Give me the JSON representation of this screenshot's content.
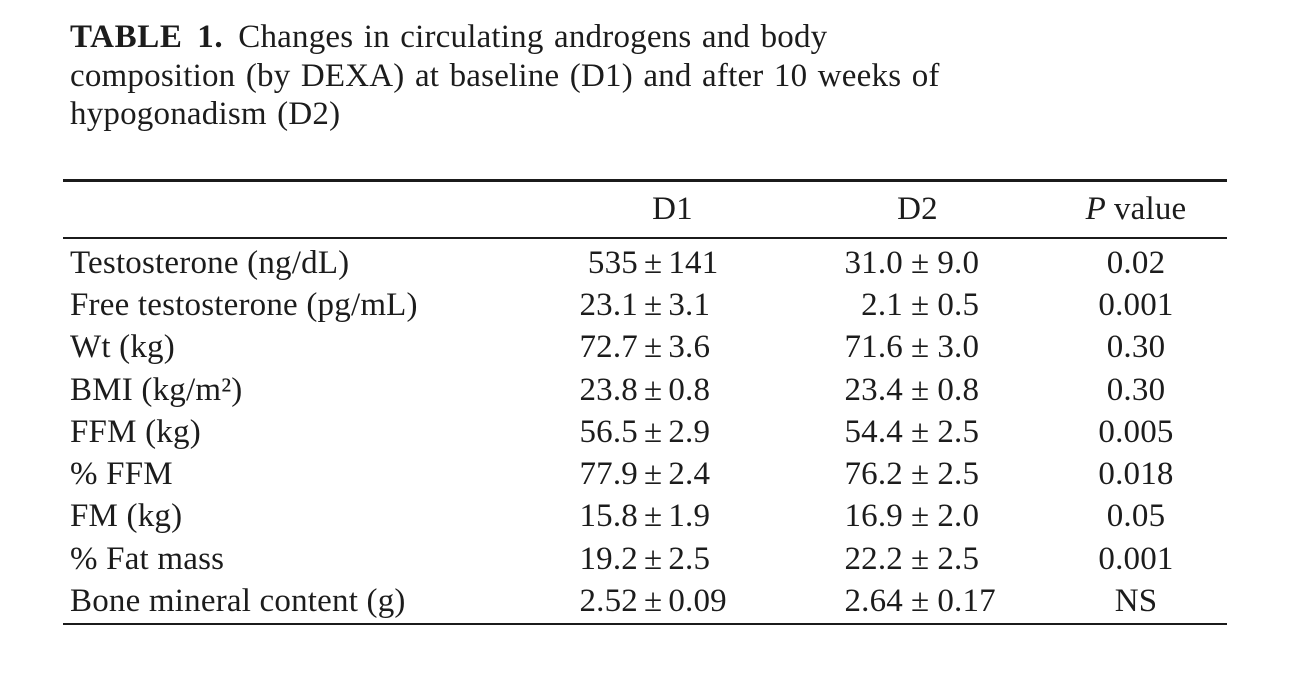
{
  "caption": {
    "label": "TABLE 1.",
    "line1": "Changes in circulating androgens and body",
    "line2": "composition (by DEXA) at baseline (D1) and after 10 weeks of",
    "line3": "hypogonadism (D2)"
  },
  "table": {
    "pm_symbol": "±",
    "columns": {
      "label": "",
      "d1": "D1",
      "d2": "D2",
      "p_symbol": "P",
      "p_text": "value"
    },
    "rows": [
      {
        "label": "Testosterone (ng/dL)",
        "d1_mean": "535",
        "d1_sd": "141",
        "d2_mean": "31.0",
        "d2_sd": "9.0",
        "p": "0.02"
      },
      {
        "label": "Free testosterone (pg/mL)",
        "d1_mean": "23.1",
        "d1_sd": "3.1",
        "d2_mean": "2.1",
        "d2_sd": "0.5",
        "p": "0.001"
      },
      {
        "label": "Wt (kg)",
        "d1_mean": "72.7",
        "d1_sd": "3.6",
        "d2_mean": "71.6",
        "d2_sd": "3.0",
        "p": "0.30"
      },
      {
        "label": "BMI (kg/m²)",
        "d1_mean": "23.8",
        "d1_sd": "0.8",
        "d2_mean": "23.4",
        "d2_sd": "0.8",
        "p": "0.30"
      },
      {
        "label": "FFM (kg)",
        "d1_mean": "56.5",
        "d1_sd": "2.9",
        "d2_mean": "54.4",
        "d2_sd": "2.5",
        "p": "0.005"
      },
      {
        "label": "% FFM",
        "d1_mean": "77.9",
        "d1_sd": "2.4",
        "d2_mean": "76.2",
        "d2_sd": "2.5",
        "p": "0.018"
      },
      {
        "label": "FM (kg)",
        "d1_mean": "15.8",
        "d1_sd": "1.9",
        "d2_mean": "16.9",
        "d2_sd": "2.0",
        "p": "0.05"
      },
      {
        "label": "% Fat mass",
        "d1_mean": "19.2",
        "d1_sd": "2.5",
        "d2_mean": "22.2",
        "d2_sd": "2.5",
        "p": "0.001"
      },
      {
        "label": "Bone mineral content (g)",
        "d1_mean": "2.52",
        "d1_sd": "0.09",
        "d2_mean": "2.64",
        "d2_sd": "0.17",
        "p": "NS"
      }
    ]
  }
}
